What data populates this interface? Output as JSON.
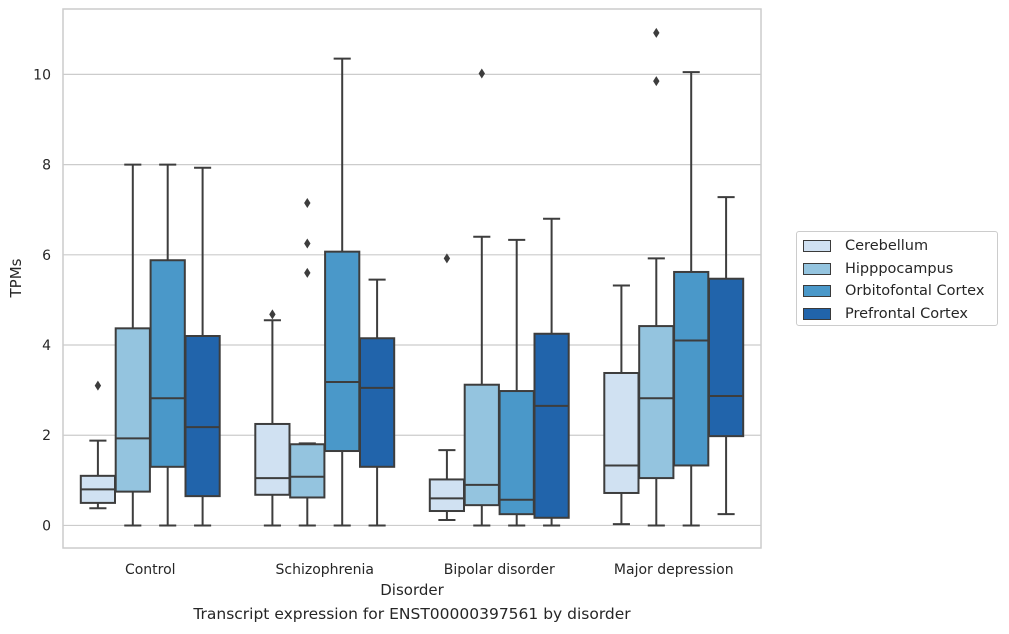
{
  "chart_data": {
    "type": "boxplot",
    "title": "Transcript expression for ENST00000397561 by disorder",
    "xlabel": "Disorder",
    "ylabel": "TPMs",
    "ylim": [
      -0.5,
      11.45
    ],
    "yticks": [
      0,
      2,
      4,
      6,
      8,
      10
    ],
    "grid": "horizontal",
    "legend_placement": "center-right",
    "categories": [
      "Control",
      "Schizophrenia",
      "Bipolar disorder",
      "Major depression"
    ],
    "series": [
      {
        "name": "Cerebellum",
        "color": "#d0e1f2",
        "boxes": [
          {
            "whisker_low": 0.38,
            "q1": 0.5,
            "median": 0.8,
            "q3": 1.1,
            "whisker_high": 1.88,
            "outliers": [
              3.1
            ]
          },
          {
            "whisker_low": 0.0,
            "q1": 0.68,
            "median": 1.05,
            "q3": 2.25,
            "whisker_high": 4.55,
            "outliers": [
              4.68
            ]
          },
          {
            "whisker_low": 0.12,
            "q1": 0.32,
            "median": 0.6,
            "q3": 1.02,
            "whisker_high": 1.67,
            "outliers": [
              5.92
            ]
          },
          {
            "whisker_low": 0.03,
            "q1": 0.72,
            "median": 1.33,
            "q3": 3.38,
            "whisker_high": 5.32,
            "outliers": []
          }
        ]
      },
      {
        "name": "Hipppocampus",
        "color": "#94c4df",
        "boxes": [
          {
            "whisker_low": 0.0,
            "q1": 0.75,
            "median": 1.93,
            "q3": 4.37,
            "whisker_high": 8.0,
            "outliers": []
          },
          {
            "whisker_low": 0.0,
            "q1": 0.62,
            "median": 1.08,
            "q3": 1.8,
            "whisker_high": 1.82,
            "outliers": [
              5.6,
              6.25,
              7.15
            ]
          },
          {
            "whisker_low": 0.0,
            "q1": 0.45,
            "median": 0.9,
            "q3": 3.12,
            "whisker_high": 6.4,
            "outliers": [
              10.02
            ]
          },
          {
            "whisker_low": 0.0,
            "q1": 1.05,
            "median": 2.82,
            "q3": 4.42,
            "whisker_high": 5.92,
            "outliers": [
              9.85,
              10.92
            ]
          }
        ]
      },
      {
        "name": "Orbitofontal Cortex",
        "color": "#4a98c9",
        "boxes": [
          {
            "whisker_low": 0.0,
            "q1": 1.3,
            "median": 2.82,
            "q3": 5.88,
            "whisker_high": 8.0,
            "outliers": []
          },
          {
            "whisker_low": 0.0,
            "q1": 1.65,
            "median": 3.18,
            "q3": 6.07,
            "whisker_high": 10.35,
            "outliers": []
          },
          {
            "whisker_low": 0.0,
            "q1": 0.25,
            "median": 0.57,
            "q3": 2.98,
            "whisker_high": 6.33,
            "outliers": []
          },
          {
            "whisker_low": 0.0,
            "q1": 1.33,
            "median": 4.1,
            "q3": 5.62,
            "whisker_high": 10.05,
            "outliers": []
          }
        ]
      },
      {
        "name": "Prefrontal Cortex",
        "color": "#2164ab",
        "boxes": [
          {
            "whisker_low": 0.0,
            "q1": 0.65,
            "median": 2.18,
            "q3": 4.2,
            "whisker_high": 7.93,
            "outliers": []
          },
          {
            "whisker_low": 0.0,
            "q1": 1.3,
            "median": 3.05,
            "q3": 4.15,
            "whisker_high": 5.45,
            "outliers": []
          },
          {
            "whisker_low": 0.0,
            "q1": 0.17,
            "median": 2.65,
            "q3": 4.25,
            "whisker_high": 6.8,
            "outliers": []
          },
          {
            "whisker_low": 0.25,
            "q1": 1.98,
            "median": 2.87,
            "q3": 5.47,
            "whisker_high": 7.28,
            "outliers": []
          }
        ]
      }
    ]
  }
}
